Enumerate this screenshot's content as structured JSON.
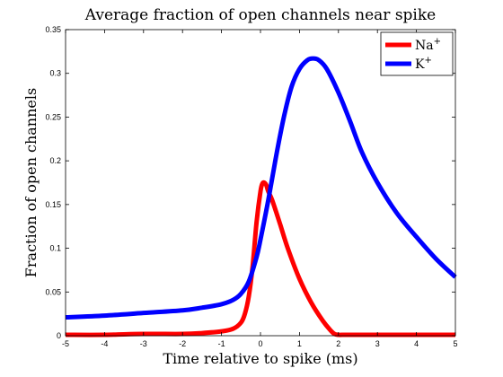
{
  "chart_data": {
    "type": "line",
    "title": "Average fraction of open channels near spike",
    "xlabel": "Time relative to spike (ms)",
    "ylabel": "Fraction of open channels",
    "xlim": [
      -5,
      5
    ],
    "ylim": [
      0,
      0.35
    ],
    "xticks": [
      -5,
      -4,
      -3,
      -2,
      -1,
      0,
      1,
      2,
      3,
      4,
      5
    ],
    "yticks": [
      0,
      0.05,
      0.1,
      0.15,
      0.2,
      0.25,
      0.3,
      0.35
    ],
    "xtick_labels": [
      "-5",
      "-4",
      "-3",
      "-2",
      "-1",
      "0",
      "1",
      "2",
      "3",
      "4",
      "5"
    ],
    "ytick_labels": [
      "0",
      "0.05",
      "0.1",
      "0.15",
      "0.2",
      "0.25",
      "0.3",
      "0.35"
    ],
    "grid": false,
    "legend_position": "top-right",
    "series": [
      {
        "name": "Na",
        "name_sup": "+",
        "color": "#ff0000",
        "x": [
          -5,
          -4,
          -3,
          -2,
          -1.5,
          -1,
          -0.7,
          -0.5,
          -0.4,
          -0.3,
          -0.2,
          -0.1,
          0,
          0.05,
          0.1,
          0.15,
          0.2,
          0.3,
          0.5,
          0.7,
          1.0,
          1.3,
          1.6,
          1.8,
          1.9,
          2.0,
          2.1,
          2.5,
          3,
          4,
          5
        ],
        "y": [
          0.001,
          0.001,
          0.002,
          0.002,
          0.003,
          0.005,
          0.008,
          0.015,
          0.025,
          0.045,
          0.08,
          0.13,
          0.165,
          0.174,
          0.175,
          0.172,
          0.165,
          0.155,
          0.128,
          0.1,
          0.065,
          0.038,
          0.017,
          0.006,
          0.002,
          0.001,
          0.001,
          0.001,
          0.001,
          0.001,
          0.001
        ]
      },
      {
        "name": "K",
        "name_sup": "+",
        "color": "#0000ff",
        "x": [
          -5,
          -4,
          -3,
          -2,
          -1.5,
          -1,
          -0.7,
          -0.5,
          -0.3,
          -0.1,
          0,
          0.2,
          0.4,
          0.6,
          0.8,
          1.0,
          1.2,
          1.35,
          1.5,
          1.7,
          2.0,
          2.3,
          2.6,
          3.0,
          3.5,
          4.0,
          4.5,
          5.0
        ],
        "y": [
          0.021,
          0.023,
          0.026,
          0.029,
          0.032,
          0.036,
          0.041,
          0.048,
          0.062,
          0.09,
          0.11,
          0.155,
          0.205,
          0.25,
          0.285,
          0.305,
          0.315,
          0.317,
          0.315,
          0.305,
          0.278,
          0.245,
          0.21,
          0.175,
          0.14,
          0.113,
          0.088,
          0.067
        ]
      }
    ]
  }
}
